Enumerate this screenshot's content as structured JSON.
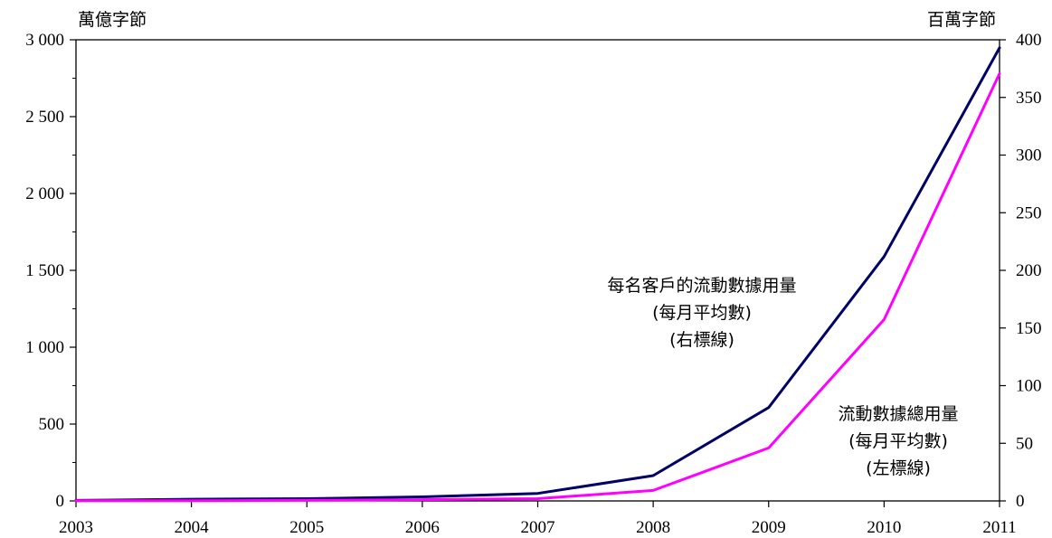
{
  "chart_data": {
    "type": "line",
    "x": [
      2003,
      2004,
      2005,
      2006,
      2007,
      2008,
      2009,
      2010,
      2011
    ],
    "left_axis": {
      "unit_label": "萬億字節",
      "ylim": [
        0,
        3000
      ],
      "ticks": [
        0,
        500,
        1000,
        1500,
        2000,
        2500,
        3000
      ],
      "tick_labels": [
        "0",
        "500",
        "1 000",
        "1 500",
        "2 000",
        "2 500",
        "3 000"
      ]
    },
    "right_axis": {
      "unit_label": "百萬字節",
      "ylim": [
        0,
        400
      ],
      "ticks": [
        0,
        50,
        100,
        150,
        200,
        250,
        300,
        350,
        400
      ],
      "tick_labels": [
        "0",
        "50",
        "100",
        "150",
        "200",
        "250",
        "300",
        "350",
        "400"
      ]
    },
    "x_tick_labels": [
      "2003",
      "2004",
      "2005",
      "2006",
      "2007",
      "2008",
      "2009",
      "2010",
      "2011"
    ],
    "series": [
      {
        "axis": "right",
        "color": "#000066",
        "values": [
          0.5,
          1.5,
          2,
          3.5,
          6.5,
          22,
          81,
          212,
          393
        ]
      },
      {
        "axis": "left",
        "color": "#ff00ff",
        "values": [
          1,
          2,
          4,
          8,
          15,
          68,
          345,
          1180,
          2780
        ]
      }
    ],
    "annotations": [
      {
        "series": 0,
        "lines": [
          "每名客戶的流動數據用量",
          "(每月平均數)",
          "(右標線)"
        ]
      },
      {
        "series": 1,
        "lines": [
          "流動數據總用量",
          "(每月平均數)",
          "(左標線)"
        ]
      }
    ],
    "grid": false
  }
}
